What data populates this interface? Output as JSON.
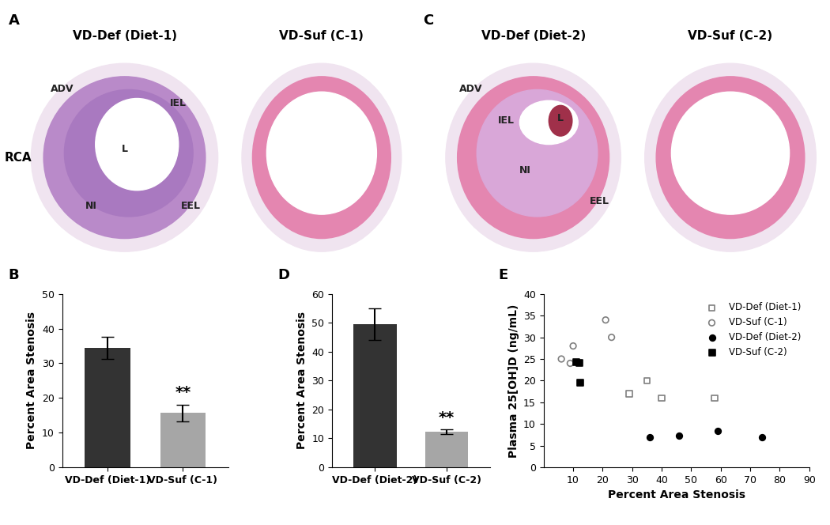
{
  "images": [
    {
      "panel": "A",
      "side_label": "RCA",
      "items": [
        {
          "title": "VD-Def (Diet-1)",
          "labels": [
            "ADV",
            "IEL",
            "L",
            "NI",
            "EEL"
          ]
        },
        {
          "title": "VD-Suf (C-1)",
          "labels": []
        }
      ]
    },
    {
      "panel": "C",
      "items": [
        {
          "title": "VD-Def (Diet-2)",
          "labels": [
            "ADV",
            "IEL",
            "L",
            "NI",
            "EEL"
          ]
        },
        {
          "title": "VD-Suf (C-2)",
          "labels": []
        }
      ]
    }
  ],
  "chart_data": [
    {
      "panel": "B",
      "type": "bar",
      "categories": [
        "VD-Def (Diet-1)",
        "VD-Suf (C-1)"
      ],
      "values": [
        34.5,
        15.7
      ],
      "errors": [
        3.2,
        2.4
      ],
      "colors": [
        "#333333",
        "#a6a6a6"
      ],
      "y_label": "Percent Area Stenosis",
      "ylim": [
        0,
        50
      ],
      "yticks": [
        0,
        10,
        20,
        30,
        40,
        50
      ],
      "annotations": [
        {
          "category": "VD-Suf (C-1)",
          "text": "**"
        }
      ]
    },
    {
      "panel": "D",
      "type": "bar",
      "categories": [
        "VD-Def (Diet-2)",
        "VD-Suf (C-2)"
      ],
      "values": [
        49.5,
        12.3
      ],
      "errors": [
        5.5,
        0.8
      ],
      "colors": [
        "#333333",
        "#a6a6a6"
      ],
      "y_label": "Percent Area Stenosis",
      "ylim": [
        0,
        60
      ],
      "yticks": [
        0,
        10,
        20,
        30,
        40,
        50,
        60
      ],
      "annotations": [
        {
          "category": "VD-Suf (C-2)",
          "text": "**"
        }
      ]
    },
    {
      "panel": "E",
      "type": "scatter",
      "x_label": "Percent Area Stenosis",
      "y_label": "Plasma 25[OH]D (ng/mL)",
      "xlim": [
        0,
        90
      ],
      "xticks": [
        10,
        20,
        30,
        40,
        50,
        60,
        70,
        80,
        90
      ],
      "ylim": [
        0,
        40
      ],
      "yticks": [
        0,
        5,
        10,
        15,
        20,
        25,
        30,
        35,
        40
      ],
      "legend": "upper right",
      "series": [
        {
          "name": "VD-Def (Diet-1)",
          "color": "#7f7f7f",
          "marker": "square_open",
          "x": [
            29,
            35,
            40,
            58
          ],
          "values": [
            17,
            20,
            16,
            16
          ]
        },
        {
          "name": "VD-Suf (C-1)",
          "color": "#7f7f7f",
          "marker": "circle_open",
          "x": [
            6,
            9,
            10,
            21,
            23
          ],
          "values": [
            25,
            24,
            28,
            34,
            30
          ]
        },
        {
          "name": "VD-Def (Diet-2)",
          "color": "#000000",
          "marker": "circle",
          "x": [
            36,
            46,
            59,
            74
          ],
          "values": [
            7,
            7.3,
            8.3,
            7
          ]
        },
        {
          "name": "VD-Suf (C-2)",
          "color": "#000000",
          "marker": "square",
          "x": [
            11,
            12,
            12.5
          ],
          "values": [
            24.3,
            24,
            19.5
          ]
        }
      ]
    }
  ]
}
